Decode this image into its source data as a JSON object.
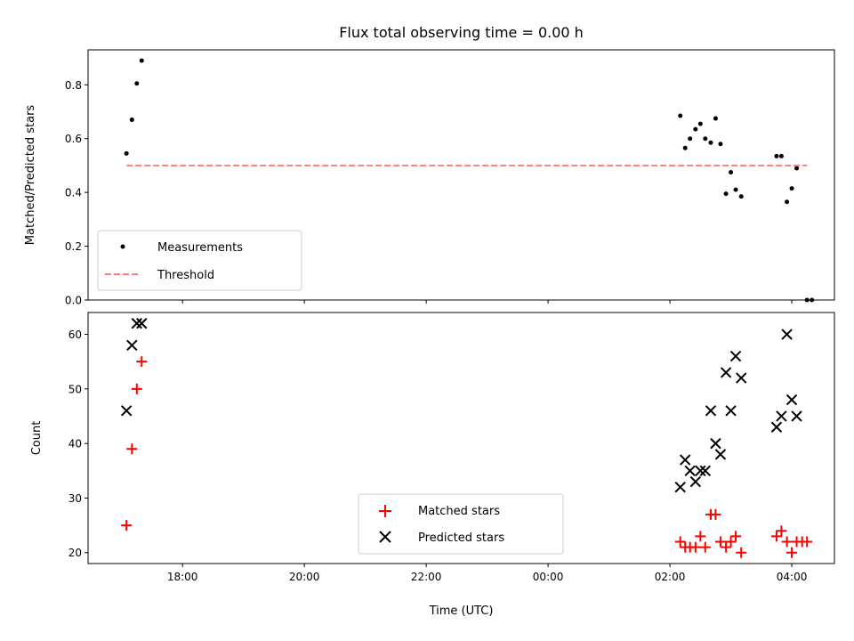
{
  "chart_data": [
    {
      "type": "scatter",
      "title": "Flux total observing time = 0.00 h",
      "xlabel": "",
      "ylabel": "Matched/Predicted stars",
      "xlim": [
        -0.55,
        11.7
      ],
      "ylim": [
        0.0,
        0.93
      ],
      "x_unit": "hours since 17:00 UTC",
      "yticks": [
        0.0,
        0.2,
        0.4,
        0.6,
        0.8
      ],
      "ytick_labels": [
        "0.0",
        "0.2",
        "0.4",
        "0.6",
        "0.8"
      ],
      "grid": false,
      "legend_position": "lower-left",
      "series": [
        {
          "name": "Measurements",
          "marker": "dot",
          "color": "#000000",
          "points": [
            [
              0.08,
              0.545
            ],
            [
              0.17,
              0.67
            ],
            [
              0.25,
              0.805
            ],
            [
              0.33,
              0.89
            ],
            [
              9.17,
              0.685
            ],
            [
              9.25,
              0.565
            ],
            [
              9.33,
              0.6
            ],
            [
              9.42,
              0.635
            ],
            [
              9.5,
              0.655
            ],
            [
              9.58,
              0.6
            ],
            [
              9.67,
              0.585
            ],
            [
              9.75,
              0.675
            ],
            [
              9.83,
              0.58
            ],
            [
              9.92,
              0.395
            ],
            [
              10.0,
              0.475
            ],
            [
              10.08,
              0.41
            ],
            [
              10.17,
              0.385
            ],
            [
              10.75,
              0.535
            ],
            [
              10.83,
              0.535
            ],
            [
              10.92,
              0.365
            ],
            [
              11.0,
              0.415
            ],
            [
              11.08,
              0.49
            ],
            [
              11.25,
              0.0
            ],
            [
              11.33,
              0.0
            ]
          ]
        },
        {
          "name": "Threshold",
          "style": "dashed-line",
          "color": "#ff7f7f",
          "x": [
            0.08,
            11.25
          ],
          "y": [
            0.5,
            0.5
          ]
        }
      ]
    },
    {
      "type": "scatter",
      "title": "",
      "xlabel": "Time (UTC)",
      "ylabel": "Count",
      "xlim": [
        -0.55,
        11.7
      ],
      "ylim": [
        18,
        64
      ],
      "x_unit": "hours since 17:00 UTC",
      "xticks": [
        1,
        3,
        5,
        7,
        9,
        11
      ],
      "xtick_labels": [
        "18:00",
        "20:00",
        "22:00",
        "00:00",
        "02:00",
        "04:00"
      ],
      "yticks": [
        20,
        30,
        40,
        50,
        60
      ],
      "ytick_labels": [
        "20",
        "30",
        "40",
        "50",
        "60"
      ],
      "grid": false,
      "legend_position": "lower-center",
      "series": [
        {
          "name": "Matched stars",
          "marker": "plus",
          "color": "#ff0000",
          "points": [
            [
              0.08,
              25
            ],
            [
              0.17,
              39
            ],
            [
              0.25,
              50
            ],
            [
              0.33,
              55
            ],
            [
              9.17,
              22
            ],
            [
              9.25,
              21
            ],
            [
              9.33,
              21
            ],
            [
              9.42,
              21
            ],
            [
              9.5,
              23
            ],
            [
              9.58,
              21
            ],
            [
              9.67,
              27
            ],
            [
              9.75,
              27
            ],
            [
              9.83,
              22
            ],
            [
              9.92,
              21
            ],
            [
              10.0,
              22
            ],
            [
              10.08,
              23
            ],
            [
              10.17,
              20
            ],
            [
              10.75,
              23
            ],
            [
              10.83,
              24
            ],
            [
              10.92,
              22
            ],
            [
              11.0,
              20
            ],
            [
              11.08,
              22
            ],
            [
              11.17,
              22
            ],
            [
              11.25,
              22
            ]
          ]
        },
        {
          "name": "Predicted stars",
          "marker": "x",
          "color": "#000000",
          "points": [
            [
              0.08,
              46
            ],
            [
              0.17,
              58
            ],
            [
              0.25,
              62
            ],
            [
              0.33,
              62
            ],
            [
              9.17,
              32
            ],
            [
              9.25,
              37
            ],
            [
              9.33,
              35
            ],
            [
              9.42,
              33
            ],
            [
              9.5,
              35
            ],
            [
              9.58,
              35
            ],
            [
              9.67,
              46
            ],
            [
              9.75,
              40
            ],
            [
              9.83,
              38
            ],
            [
              9.92,
              53
            ],
            [
              10.0,
              46
            ],
            [
              10.08,
              56
            ],
            [
              10.17,
              52
            ],
            [
              10.75,
              43
            ],
            [
              10.83,
              45
            ],
            [
              10.92,
              60
            ],
            [
              11.0,
              48
            ],
            [
              11.08,
              45
            ]
          ]
        }
      ]
    }
  ]
}
